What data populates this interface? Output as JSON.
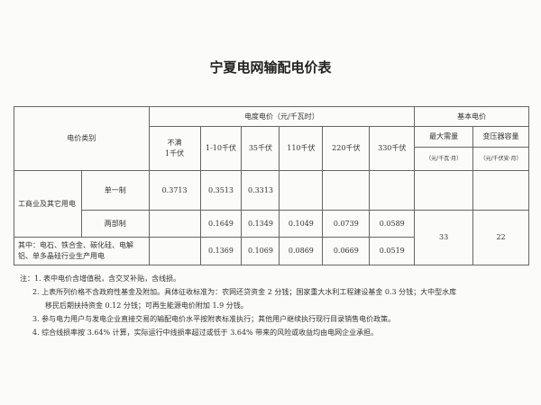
{
  "title": "宁夏电网输配电价表",
  "header": {
    "category": "电价类别",
    "energy_price": "电度电价（元/千瓦时）",
    "basic_price": "基本电价",
    "voltages": [
      "不满\n1千伏",
      "1-10千伏",
      "35千伏",
      "110千伏",
      "220千伏",
      "330千伏"
    ],
    "max_demand": "最大需量",
    "transformer": "变压器容量",
    "max_demand_unit": "（元/千瓦·月）",
    "transformer_unit": "（元/千伏安·月）"
  },
  "rows": {
    "group": "工商业及其它用电",
    "single": "单一制",
    "two_part": "两部制",
    "special": "其中：电石、铁合金、碳化硅、电解铝、单多晶硅行业生产用电",
    "single_values": [
      "0.3713",
      "0.3513",
      "0.3313",
      "",
      "",
      ""
    ],
    "two_part_values": [
      "",
      "0.1649",
      "0.1349",
      "0.1049",
      "0.0739",
      "0.0589"
    ],
    "special_values": [
      "",
      "0.1369",
      "0.1069",
      "0.0869",
      "0.0669",
      "0.0519"
    ],
    "max_demand_value": "33",
    "transformer_value": "22"
  },
  "notes": [
    "注：1. 表中电价含增值税，含交叉补贴，含线损。",
    "2. 上表所列价格不含政府性基金及附加。具体征收标准为：农网还贷资金 2 分钱；国家重大水利工程建设基金 0.3 分钱；大中型水库",
    "移民后期扶持资金 0.12 分钱；可再生能源电价附加 1.9 分钱。",
    "3. 参与电力用户与发电企业直接交易的输配电价水平按附表标准执行；其他用户继续执行现行目录销售电价政策。",
    "4. 综合线损率按 3.64% 计算，实际运行中线损率超过或低于 3.64% 带来的风险或收益均由电网企业承担。"
  ]
}
